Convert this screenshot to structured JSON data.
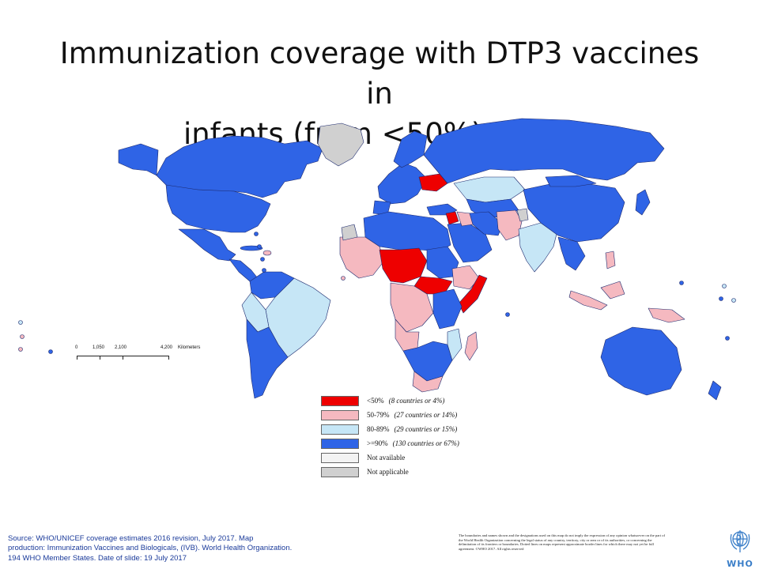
{
  "title_line1": "Immunization coverage with DTP3 vaccines in",
  "title_line2": "infants (from <50%), 2016",
  "scale": {
    "ticks": [
      "0",
      "1,050",
      "2,100",
      "4,200"
    ],
    "unit": "Kilometers"
  },
  "colors": {
    "lt50": "#ee0000",
    "p50_79": "#f5b9c0",
    "p80_89": "#c6e6f6",
    "ge90": "#2f64e6",
    "not_available": "#f3f3f3",
    "not_applicable": "#d0d0d0",
    "border": "#1d2a6e"
  },
  "legend": [
    {
      "key": "lt50",
      "label": "<50%",
      "note": "(8 countries or 4%)"
    },
    {
      "key": "p50_79",
      "label": "50-79%",
      "note": "(27 countries or 14%)"
    },
    {
      "key": "p80_89",
      "label": "80-89%",
      "note": "(29 countries or 15%)"
    },
    {
      "key": "ge90",
      "label": ">=90%",
      "note": "(130 countries or 67%)"
    },
    {
      "key": "not_available",
      "label": "Not available",
      "note": ""
    },
    {
      "key": "not_applicable",
      "label": "Not applicable",
      "note": ""
    }
  ],
  "source_text": "Source: WHO/UNICEF   coverage estimates 2016 revision, July 2017. Map production: Immunization  Vaccines and Biologicals, (IVB). World Health Organization. 194 WHO Member States. Date of slide: 19 July 2017",
  "disclaimer_text": "The boundaries and names shown and the designations used on this map do not imply the expression of any opinion whatsoever on the part of the World Health Organization concerning the legal status of any country, territory, city or area or of its authorities, or concerning the delimitation of its frontiers or boundaries. Dotted lines on maps represent approximate border lines for which there may not yet be full agreement. ©WHO 2017. All rights reserved",
  "logo_text": "WHO"
}
